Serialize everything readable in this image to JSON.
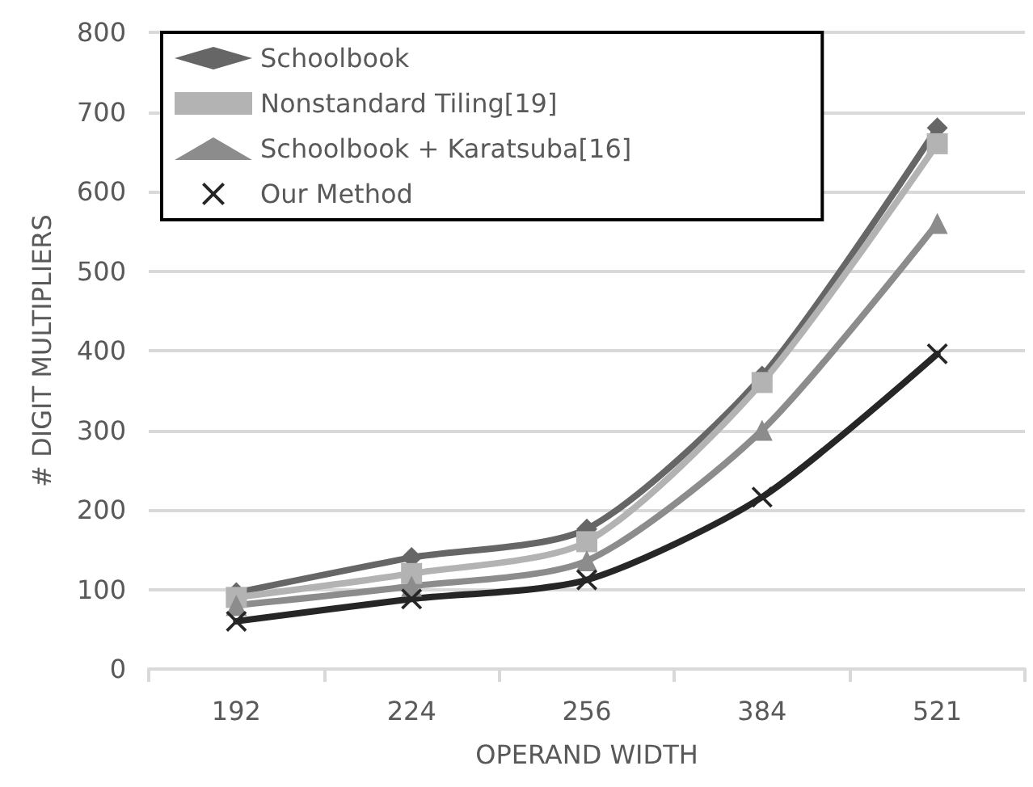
{
  "chart_data": {
    "type": "line",
    "xlabel": "OPERAND WIDTH",
    "ylabel": "# DIGIT MULTIPLIERS",
    "categories": [
      "192",
      "224",
      "256",
      "384",
      "521"
    ],
    "series": [
      {
        "name": "Schoolbook",
        "color": "#666666",
        "marker": "diamond",
        "values": [
          96,
          140,
          176,
          368,
          680
        ]
      },
      {
        "name": "Nonstandard Tiling[19]",
        "color": "#b3b3b3",
        "marker": "square",
        "values": [
          90,
          120,
          160,
          360,
          660
        ]
      },
      {
        "name": "Schoolbook + Karatsuba[16]",
        "color": "#8c8c8c",
        "marker": "triangle",
        "values": [
          80,
          104,
          136,
          300,
          560
        ]
      },
      {
        "name": "Our Method",
        "color": "#262626",
        "marker": "cross",
        "values": [
          60,
          88,
          112,
          216,
          396
        ]
      }
    ],
    "ylim": [
      0,
      800
    ],
    "yticks": [
      0,
      100,
      200,
      300,
      400,
      500,
      600,
      700,
      800
    ],
    "grid": "y",
    "legend": "top left",
    "line_style": "solid"
  }
}
